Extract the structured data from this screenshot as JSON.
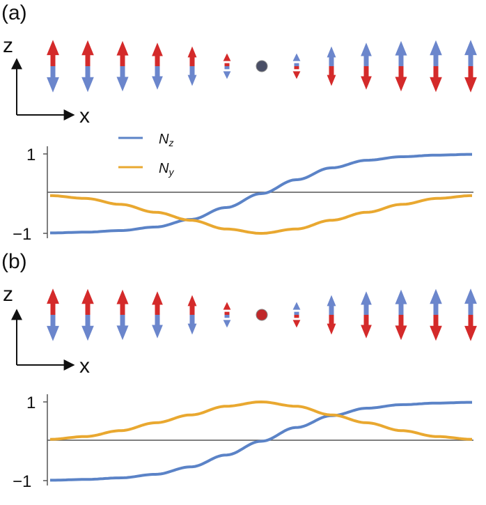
{
  "colors": {
    "nz": "#5b83c7",
    "ny": "#e9a830",
    "spin_up_tip": "#d42a2a",
    "spin_down_tip": "#6b86cc",
    "axis": "#555555"
  },
  "panels": [
    {
      "label": "(a)",
      "axes": {
        "z_label": "z",
        "x_label": "x"
      },
      "legend": [
        {
          "symbol": "N",
          "sub": "z",
          "series": "Nz",
          "color": "#5b83c7"
        },
        {
          "symbol": "N",
          "sub": "y",
          "series": "Ny",
          "color": "#e9a830"
        }
      ],
      "spins": {
        "count": 13,
        "description": "Néel vector rotating in the z–y plane, y-component negative"
      },
      "plot": {
        "y_ticks": [
          "1",
          "−1"
        ],
        "ny_sign": -1
      }
    },
    {
      "label": "(b)",
      "axes": {
        "z_label": "z",
        "x_label": "x"
      },
      "spins": {
        "count": 13,
        "description": "Néel vector rotating in the z–y plane, y-component positive"
      },
      "plot": {
        "y_ticks": [
          "1",
          "−1"
        ],
        "ny_sign": 1
      }
    }
  ],
  "chart_data": [
    {
      "type": "line",
      "series": [
        {
          "name": "Nz",
          "x": [
            -3,
            -2.5,
            -2,
            -1.5,
            -1,
            -0.5,
            0,
            0.5,
            1,
            1.5,
            2,
            2.5,
            3
          ],
          "values": [
            -0.99,
            -0.97,
            -0.93,
            -0.84,
            -0.65,
            -0.35,
            0,
            0.35,
            0.65,
            0.84,
            0.93,
            0.97,
            0.99
          ]
        },
        {
          "name": "Ny",
          "x": [
            -3,
            -2.5,
            -2,
            -1.5,
            -1,
            -0.5,
            0,
            0.5,
            1,
            1.5,
            2,
            2.5,
            3
          ],
          "values": [
            -0.05,
            -0.12,
            -0.27,
            -0.47,
            -0.67,
            -0.89,
            -1,
            -0.89,
            -0.67,
            -0.47,
            -0.27,
            -0.12,
            -0.05
          ]
        }
      ],
      "ylim": [
        -1,
        1
      ],
      "y_ticks": [
        1,
        -1
      ]
    },
    {
      "type": "line",
      "series": [
        {
          "name": "Nz",
          "x": [
            -3,
            -2.5,
            -2,
            -1.5,
            -1,
            -0.5,
            0,
            0.5,
            1,
            1.5,
            2,
            2.5,
            3
          ],
          "values": [
            -0.99,
            -0.97,
            -0.93,
            -0.84,
            -0.65,
            -0.35,
            0,
            0.35,
            0.65,
            0.84,
            0.93,
            0.97,
            0.99
          ]
        },
        {
          "name": "Ny",
          "x": [
            -3,
            -2.5,
            -2,
            -1.5,
            -1,
            -0.5,
            0,
            0.5,
            1,
            1.5,
            2,
            2.5,
            3
          ],
          "values": [
            0.05,
            0.12,
            0.27,
            0.47,
            0.67,
            0.89,
            1,
            0.89,
            0.67,
            0.47,
            0.27,
            0.12,
            0.05
          ]
        }
      ],
      "ylim": [
        -1,
        1
      ],
      "y_ticks": [
        1,
        -1
      ]
    }
  ]
}
